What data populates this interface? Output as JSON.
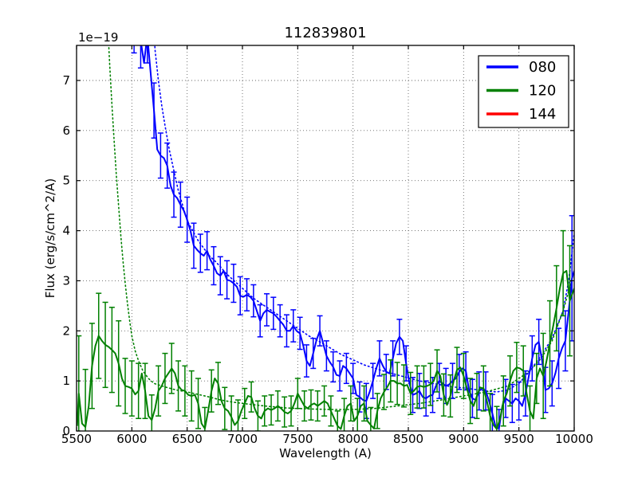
{
  "chart_data": {
    "type": "line",
    "title": "112839801",
    "xlabel": "Wavelength (A)",
    "ylabel": "Flux (erg/s/cm^2/A)",
    "y_offset_label": "1e−19",
    "y_scale_factor": "1e-19",
    "xlim": [
      5500,
      10000
    ],
    "ylim": [
      0,
      7.7
    ],
    "xticks": [
      5500,
      6000,
      6500,
      7000,
      7500,
      8000,
      8500,
      9000,
      9500,
      10000
    ],
    "yticks": [
      0,
      1,
      2,
      3,
      4,
      5,
      6,
      7
    ],
    "grid": true,
    "grid_style": "dotted",
    "background": "#ffffff",
    "legend": {
      "position": "upper right",
      "entries": [
        {
          "label": "080",
          "color": "#0000ff"
        },
        {
          "label": "120",
          "color": "#008000"
        },
        {
          "label": "144",
          "color": "#ff0000"
        }
      ]
    },
    "series": [
      {
        "name": "080 model",
        "color": "#0000ff",
        "style": "dotted",
        "x": [
          6190,
          6210,
          6240,
          6270,
          6300,
          6340,
          6380,
          6420,
          6460,
          6500,
          6550,
          6600,
          6650,
          6700,
          6750,
          6800,
          6850,
          6900,
          6950,
          7000,
          7100,
          7200,
          7300,
          7400,
          7500,
          7600,
          7700,
          7800,
          7900,
          8000,
          8100,
          8200,
          8300,
          8400,
          8500,
          8600,
          8700,
          8800,
          8900,
          9000,
          9100,
          9200,
          9300,
          9400,
          9500,
          9600,
          9700,
          9800,
          9900,
          9950,
          10000
        ],
        "y": [
          8.3,
          7.6,
          7.0,
          6.5,
          6.1,
          5.6,
          5.2,
          4.8,
          4.5,
          4.2,
          4.0,
          3.8,
          3.65,
          3.5,
          3.4,
          3.28,
          3.15,
          3.05,
          2.95,
          2.85,
          2.65,
          2.5,
          2.35,
          2.2,
          2.05,
          1.9,
          1.78,
          1.65,
          1.52,
          1.42,
          1.32,
          1.25,
          1.18,
          1.12,
          1.06,
          1.0,
          0.96,
          0.92,
          0.88,
          0.86,
          0.83,
          0.8,
          0.78,
          0.82,
          0.95,
          1.2,
          1.5,
          1.85,
          2.4,
          3.0,
          3.95
        ]
      },
      {
        "name": "120 model",
        "color": "#008000",
        "style": "dotted",
        "x": [
          5780,
          5800,
          5820,
          5840,
          5860,
          5880,
          5900,
          5920,
          5940,
          5960,
          5980,
          6000,
          6030,
          6060,
          6100,
          6150,
          6200,
          6300,
          6400,
          6500,
          6600,
          6700,
          6800,
          6900,
          7000,
          7200,
          7400,
          7600,
          7800,
          8000,
          8200,
          8400,
          8600,
          8800,
          9000,
          9200,
          9400,
          9600,
          9700,
          9800,
          9900,
          9950,
          10000
        ],
        "y": [
          8.2,
          7.3,
          6.5,
          5.8,
          5.1,
          4.5,
          3.9,
          3.4,
          2.95,
          2.55,
          2.2,
          1.9,
          1.6,
          1.4,
          1.2,
          1.05,
          0.95,
          0.88,
          0.82,
          0.78,
          0.73,
          0.68,
          0.62,
          0.58,
          0.55,
          0.5,
          0.46,
          0.44,
          0.43,
          0.43,
          0.45,
          0.5,
          0.55,
          0.62,
          0.7,
          0.78,
          0.9,
          1.2,
          1.45,
          1.8,
          2.4,
          2.8,
          3.2
        ]
      },
      {
        "name": "080",
        "color": "#0000ff",
        "style": "solid",
        "errorbars": true,
        "errorbar_every": 2,
        "errorbar_offset": 1,
        "x": [
          5990,
          6020,
          6050,
          6080,
          6110,
          6140,
          6170,
          6200,
          6230,
          6260,
          6290,
          6320,
          6350,
          6380,
          6410,
          6440,
          6470,
          6500,
          6530,
          6560,
          6590,
          6620,
          6650,
          6680,
          6710,
          6740,
          6770,
          6800,
          6830,
          6860,
          6890,
          6920,
          6950,
          6980,
          7010,
          7040,
          7070,
          7100,
          7130,
          7160,
          7190,
          7220,
          7250,
          7280,
          7310,
          7340,
          7370,
          7400,
          7430,
          7460,
          7490,
          7520,
          7550,
          7580,
          7610,
          7640,
          7670,
          7700,
          7730,
          7760,
          7790,
          7820,
          7850,
          7880,
          7910,
          7940,
          7970,
          8000,
          8030,
          8060,
          8090,
          8120,
          8150,
          8180,
          8210,
          8240,
          8270,
          8300,
          8330,
          8360,
          8390,
          8420,
          8450,
          8480,
          8510,
          8540,
          8570,
          8600,
          8630,
          8660,
          8690,
          8720,
          8750,
          8780,
          8810,
          8840,
          8870,
          8900,
          8930,
          8960,
          8990,
          9020,
          9050,
          9080,
          9110,
          9140,
          9170,
          9200,
          9230,
          9260,
          9290,
          9320,
          9350,
          9380,
          9410,
          9440,
          9470,
          9500,
          9530,
          9560,
          9590,
          9620,
          9650,
          9680,
          9710,
          9740,
          9770,
          9800,
          9830,
          9860,
          9890,
          9920,
          9950,
          9980,
          10000
        ],
        "y": [
          9.2,
          8.1,
          8.4,
          7.8,
          7.35,
          7.9,
          7.15,
          6.4,
          5.62,
          5.5,
          5.45,
          5.3,
          4.9,
          4.72,
          4.65,
          4.52,
          4.4,
          4.22,
          4.0,
          3.7,
          3.62,
          3.55,
          3.5,
          3.6,
          3.42,
          3.3,
          3.15,
          3.1,
          3.2,
          3.02,
          3.0,
          2.95,
          2.88,
          2.7,
          2.68,
          2.72,
          2.68,
          2.6,
          2.4,
          2.2,
          2.35,
          2.42,
          2.38,
          2.35,
          2.28,
          2.2,
          2.12,
          2.0,
          2.0,
          2.1,
          2.0,
          1.95,
          1.7,
          1.4,
          1.3,
          1.55,
          1.82,
          2.0,
          1.75,
          1.5,
          1.38,
          1.28,
          1.12,
          1.1,
          1.3,
          1.25,
          1.15,
          1.05,
          0.72,
          0.68,
          0.62,
          0.6,
          0.78,
          1.0,
          1.25,
          1.45,
          1.3,
          1.18,
          1.15,
          1.45,
          1.75,
          1.88,
          1.8,
          1.35,
          0.95,
          0.72,
          0.75,
          0.8,
          0.68,
          0.65,
          0.7,
          0.72,
          0.9,
          1.0,
          0.95,
          0.9,
          0.93,
          1.0,
          1.05,
          1.18,
          1.25,
          1.2,
          0.8,
          0.65,
          0.62,
          0.8,
          0.85,
          0.8,
          0.6,
          0.35,
          0.08,
          0.05,
          0.5,
          0.65,
          0.6,
          0.55,
          0.65,
          0.6,
          0.5,
          0.75,
          1.1,
          1.45,
          1.72,
          1.78,
          1.4,
          0.82,
          0.85,
          0.95,
          1.15,
          1.45,
          1.65,
          1.8,
          2.4,
          3.05,
          3.2
        ],
        "yerr_segments": [
          {
            "from": 5980,
            "to": 6200,
            "err": 0.55
          },
          {
            "from": 6200,
            "to": 6600,
            "err": 0.45
          },
          {
            "from": 6600,
            "to": 7000,
            "err": 0.38
          },
          {
            "from": 7000,
            "to": 7600,
            "err": 0.32
          },
          {
            "from": 7600,
            "to": 8100,
            "err": 0.3
          },
          {
            "from": 8100,
            "to": 9000,
            "err": 0.35
          },
          {
            "from": 9000,
            "to": 9500,
            "err": 0.38
          },
          {
            "from": 9500,
            "to": 9800,
            "err": 0.45
          },
          {
            "from": 9800,
            "to": 9920,
            "err": 0.6
          },
          {
            "from": 9920,
            "to": 10000,
            "err": 1.25
          }
        ]
      },
      {
        "name": "120",
        "color": "#008000",
        "style": "solid",
        "errorbars": true,
        "errorbar_every": 2,
        "errorbar_offset": 1,
        "x": [
          5505,
          5520,
          5550,
          5580,
          5610,
          5640,
          5670,
          5700,
          5730,
          5760,
          5790,
          5820,
          5850,
          5880,
          5910,
          5940,
          5970,
          6000,
          6030,
          6060,
          6090,
          6120,
          6150,
          6180,
          6210,
          6240,
          6270,
          6300,
          6330,
          6360,
          6390,
          6420,
          6450,
          6480,
          6510,
          6540,
          6570,
          6600,
          6630,
          6660,
          6690,
          6720,
          6750,
          6780,
          6810,
          6840,
          6870,
          6900,
          6930,
          6960,
          6990,
          7020,
          7050,
          7080,
          7110,
          7140,
          7170,
          7200,
          7230,
          7260,
          7290,
          7320,
          7350,
          7380,
          7410,
          7440,
          7470,
          7500,
          7530,
          7560,
          7590,
          7620,
          7650,
          7680,
          7710,
          7740,
          7770,
          7800,
          7830,
          7860,
          7890,
          7920,
          7950,
          7980,
          8010,
          8040,
          8070,
          8100,
          8130,
          8160,
          8190,
          8220,
          8250,
          8280,
          8310,
          8340,
          8370,
          8400,
          8430,
          8460,
          8490,
          8520,
          8550,
          8580,
          8610,
          8640,
          8670,
          8700,
          8730,
          8760,
          8790,
          8820,
          8850,
          8880,
          8910,
          8940,
          8970,
          9000,
          9030,
          9060,
          9090,
          9120,
          9150,
          9180,
          9210,
          9240,
          9270,
          9300,
          9330,
          9360,
          9390,
          9420,
          9450,
          9480,
          9510,
          9540,
          9570,
          9600,
          9630,
          9660,
          9690,
          9720,
          9750,
          9780,
          9810,
          9840,
          9870,
          9900,
          9930,
          9960,
          10000
        ],
        "y": [
          0.1,
          0.75,
          0.15,
          0.08,
          0.5,
          1.3,
          1.7,
          1.9,
          1.8,
          1.72,
          1.68,
          1.62,
          1.55,
          1.35,
          1.05,
          0.9,
          0.88,
          0.85,
          0.73,
          0.8,
          1.15,
          0.8,
          0.3,
          0.22,
          0.45,
          0.8,
          0.9,
          1.05,
          1.15,
          1.25,
          1.15,
          0.9,
          0.82,
          0.8,
          0.72,
          0.7,
          0.72,
          0.55,
          0.15,
          0.05,
          0.4,
          0.8,
          1.05,
          0.95,
          0.6,
          0.45,
          0.4,
          0.28,
          0.12,
          0.2,
          0.4,
          0.55,
          0.7,
          0.68,
          0.45,
          0.3,
          0.25,
          0.4,
          0.45,
          0.42,
          0.45,
          0.5,
          0.45,
          0.38,
          0.35,
          0.4,
          0.55,
          0.75,
          0.62,
          0.5,
          0.45,
          0.52,
          0.55,
          0.5,
          0.55,
          0.6,
          0.55,
          0.4,
          0.25,
          0.1,
          0.04,
          0.3,
          0.5,
          0.55,
          0.2,
          0.3,
          0.5,
          0.55,
          0.2,
          0.12,
          0.05,
          0.4,
          0.65,
          0.78,
          0.88,
          1.0,
          1.0,
          0.95,
          0.95,
          0.9,
          0.92,
          0.75,
          0.8,
          0.88,
          0.9,
          0.88,
          0.9,
          0.93,
          1.0,
          1.2,
          1.1,
          0.72,
          0.52,
          0.7,
          1.0,
          1.22,
          1.27,
          1.1,
          0.85,
          0.6,
          0.5,
          0.7,
          0.87,
          0.85,
          0.6,
          0.3,
          0.12,
          0.04,
          0.25,
          0.6,
          0.75,
          1.0,
          1.2,
          1.27,
          1.25,
          1.2,
          0.75,
          0.4,
          0.25,
          1.05,
          1.25,
          1.1,
          1.4,
          1.75,
          2.1,
          2.45,
          2.85,
          3.15,
          3.2,
          2.6,
          2.85
        ],
        "yerr_segments": [
          {
            "from": 5500,
            "to": 5600,
            "err": 1.15
          },
          {
            "from": 5600,
            "to": 5900,
            "err": 0.85
          },
          {
            "from": 5900,
            "to": 6120,
            "err": 0.55
          },
          {
            "from": 6120,
            "to": 6600,
            "err": 0.5
          },
          {
            "from": 6600,
            "to": 7000,
            "err": 0.42
          },
          {
            "from": 7000,
            "to": 7900,
            "err": 0.3
          },
          {
            "from": 7900,
            "to": 8300,
            "err": 0.35
          },
          {
            "from": 8300,
            "to": 8900,
            "err": 0.42
          },
          {
            "from": 8900,
            "to": 9300,
            "err": 0.45
          },
          {
            "from": 9300,
            "to": 9700,
            "err": 0.5
          },
          {
            "from": 9700,
            "to": 9900,
            "err": 0.85
          },
          {
            "from": 9900,
            "to": 10000,
            "err": 1.1
          }
        ]
      },
      {
        "name": "144",
        "color": "#ff0000",
        "style": "solid",
        "x": [],
        "y": [],
        "note": "listed in legend but no red curve visible in plot"
      }
    ]
  }
}
